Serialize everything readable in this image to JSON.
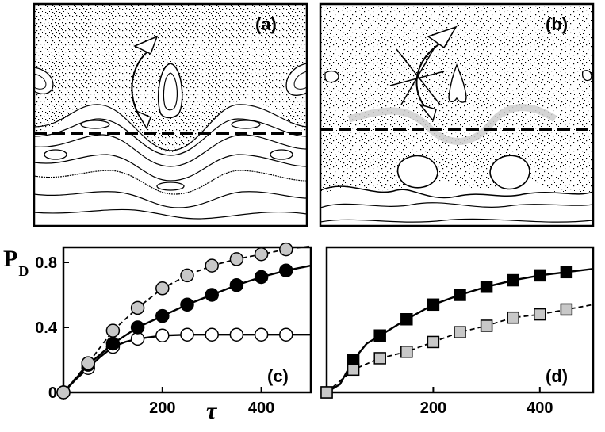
{
  "figure": {
    "panels": {
      "a": {
        "label": "(a)"
      },
      "b": {
        "label": "(b)"
      },
      "c": {
        "label": "(c)"
      },
      "d": {
        "label": "(d)"
      }
    },
    "y_axis_label": "P",
    "y_axis_subscript": "D",
    "x_axis_symbol": "τ",
    "colors": {
      "ink": "#000000",
      "gray_fill": "#c8c8c8",
      "light_gray_band": "#cfcfcf",
      "white_fill": "#ffffff"
    }
  },
  "chart_data": [
    {
      "panel": "(c)",
      "type": "line",
      "xlim": [
        0,
        500
      ],
      "ylim": [
        0,
        1.0
      ],
      "y_ticks": [
        "0",
        "0.4",
        "0.8"
      ],
      "y_tick_values": [
        0,
        0.4,
        0.8
      ],
      "x_ticks": [
        "200",
        "400"
      ],
      "x_tick_values": [
        200,
        400
      ],
      "series": [
        {
          "marker": "circle-open",
          "line": "solid",
          "x": [
            0,
            50,
            100,
            150,
            200,
            250,
            300,
            350,
            400,
            450
          ],
          "y": [
            0.0,
            0.15,
            0.28,
            0.33,
            0.35,
            0.355,
            0.355,
            0.355,
            0.355,
            0.355
          ],
          "curve_x": [
            0,
            25,
            50,
            75,
            100,
            125,
            150,
            200,
            250,
            300,
            350,
            400,
            450,
            500
          ],
          "curve_y": [
            0.0,
            0.08,
            0.15,
            0.22,
            0.28,
            0.31,
            0.33,
            0.35,
            0.355,
            0.355,
            0.355,
            0.355,
            0.355,
            0.355
          ]
        },
        {
          "marker": "circle-filled-black",
          "line": "solid",
          "x": [
            0,
            50,
            100,
            150,
            200,
            250,
            300,
            350,
            400,
            450
          ],
          "y": [
            0.0,
            0.17,
            0.3,
            0.4,
            0.47,
            0.54,
            0.6,
            0.66,
            0.71,
            0.75
          ],
          "curve_x": [
            0,
            50,
            100,
            150,
            200,
            250,
            300,
            350,
            400,
            450,
            500
          ],
          "curve_y": [
            0.0,
            0.17,
            0.3,
            0.4,
            0.47,
            0.54,
            0.6,
            0.66,
            0.71,
            0.75,
            0.78
          ]
        },
        {
          "marker": "circle-filled-gray",
          "line": "dashed",
          "x": [
            0,
            50,
            100,
            150,
            200,
            250,
            300,
            350,
            400,
            450
          ],
          "y": [
            0.0,
            0.18,
            0.38,
            0.52,
            0.64,
            0.72,
            0.78,
            0.82,
            0.85,
            0.88
          ],
          "curve_x": [
            0,
            50,
            100,
            150,
            200,
            250,
            300,
            350,
            400,
            450,
            500
          ],
          "curve_y": [
            0.0,
            0.18,
            0.38,
            0.52,
            0.64,
            0.72,
            0.78,
            0.82,
            0.85,
            0.88,
            0.9
          ]
        }
      ]
    },
    {
      "panel": "(d)",
      "type": "line",
      "xlim": [
        0,
        500
      ],
      "ylim": [
        0,
        1.0
      ],
      "x_ticks": [
        "200",
        "400"
      ],
      "x_tick_values": [
        200,
        400
      ],
      "series": [
        {
          "marker": "square-filled-black",
          "line": "solid",
          "x": [
            0,
            50,
            100,
            150,
            200,
            250,
            300,
            350,
            400,
            450
          ],
          "y": [
            0.0,
            0.2,
            0.35,
            0.45,
            0.54,
            0.6,
            0.65,
            0.69,
            0.72,
            0.74
          ],
          "curve_x": [
            0,
            25,
            50,
            75,
            100,
            150,
            200,
            250,
            300,
            350,
            400,
            450,
            500
          ],
          "curve_y": [
            0.0,
            0.05,
            0.2,
            0.3,
            0.35,
            0.45,
            0.54,
            0.6,
            0.65,
            0.69,
            0.72,
            0.74,
            0.76
          ]
        },
        {
          "marker": "square-filled-gray",
          "line": "dashed",
          "x": [
            0,
            50,
            100,
            150,
            200,
            250,
            300,
            350,
            400,
            450
          ],
          "y": [
            0.0,
            0.14,
            0.21,
            0.25,
            0.31,
            0.37,
            0.41,
            0.46,
            0.48,
            0.51
          ],
          "curve_x": [
            0,
            50,
            100,
            150,
            200,
            250,
            300,
            350,
            400,
            450,
            500
          ],
          "curve_y": [
            0.0,
            0.14,
            0.21,
            0.25,
            0.31,
            0.37,
            0.41,
            0.46,
            0.48,
            0.51,
            0.54
          ]
        }
      ]
    }
  ]
}
